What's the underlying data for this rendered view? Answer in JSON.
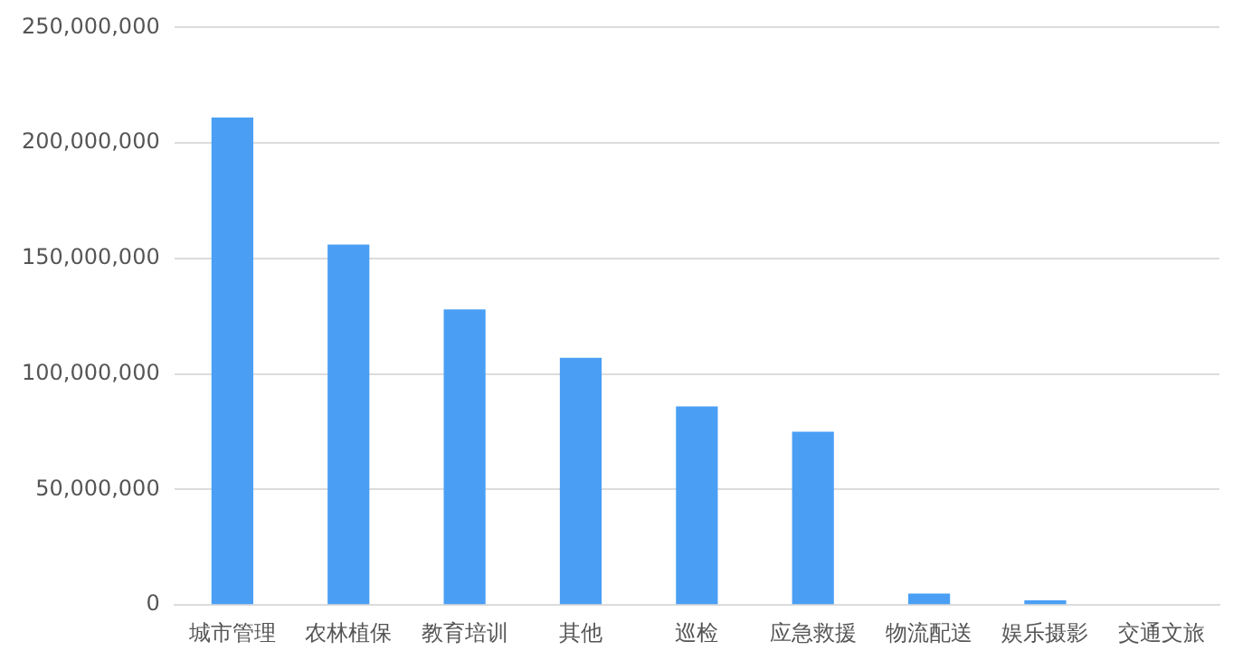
{
  "chart_data": {
    "type": "bar",
    "categories": [
      "城市管理",
      "农林植保",
      "教育培训",
      "其他",
      "巡检",
      "应急救援",
      "物流配送",
      "娱乐摄影",
      "交通文旅"
    ],
    "values": [
      211000000,
      156000000,
      128000000,
      107000000,
      86000000,
      75000000,
      5000000,
      2000000,
      0
    ],
    "color": "#4a9ff5",
    "ylim": [
      0,
      250000000
    ],
    "yticks": [
      0,
      {
        "value": 50000000,
        "label": "50,000,000"
      },
      {
        "value": 100000000,
        "label": "100,000,000"
      },
      {
        "value": 150000000,
        "label": "150,000,000"
      },
      {
        "value": 200000000,
        "label": "200,000,000"
      },
      {
        "value": 250000000,
        "label": "250,000,000"
      }
    ],
    "grid": "y",
    "legend": false
  }
}
